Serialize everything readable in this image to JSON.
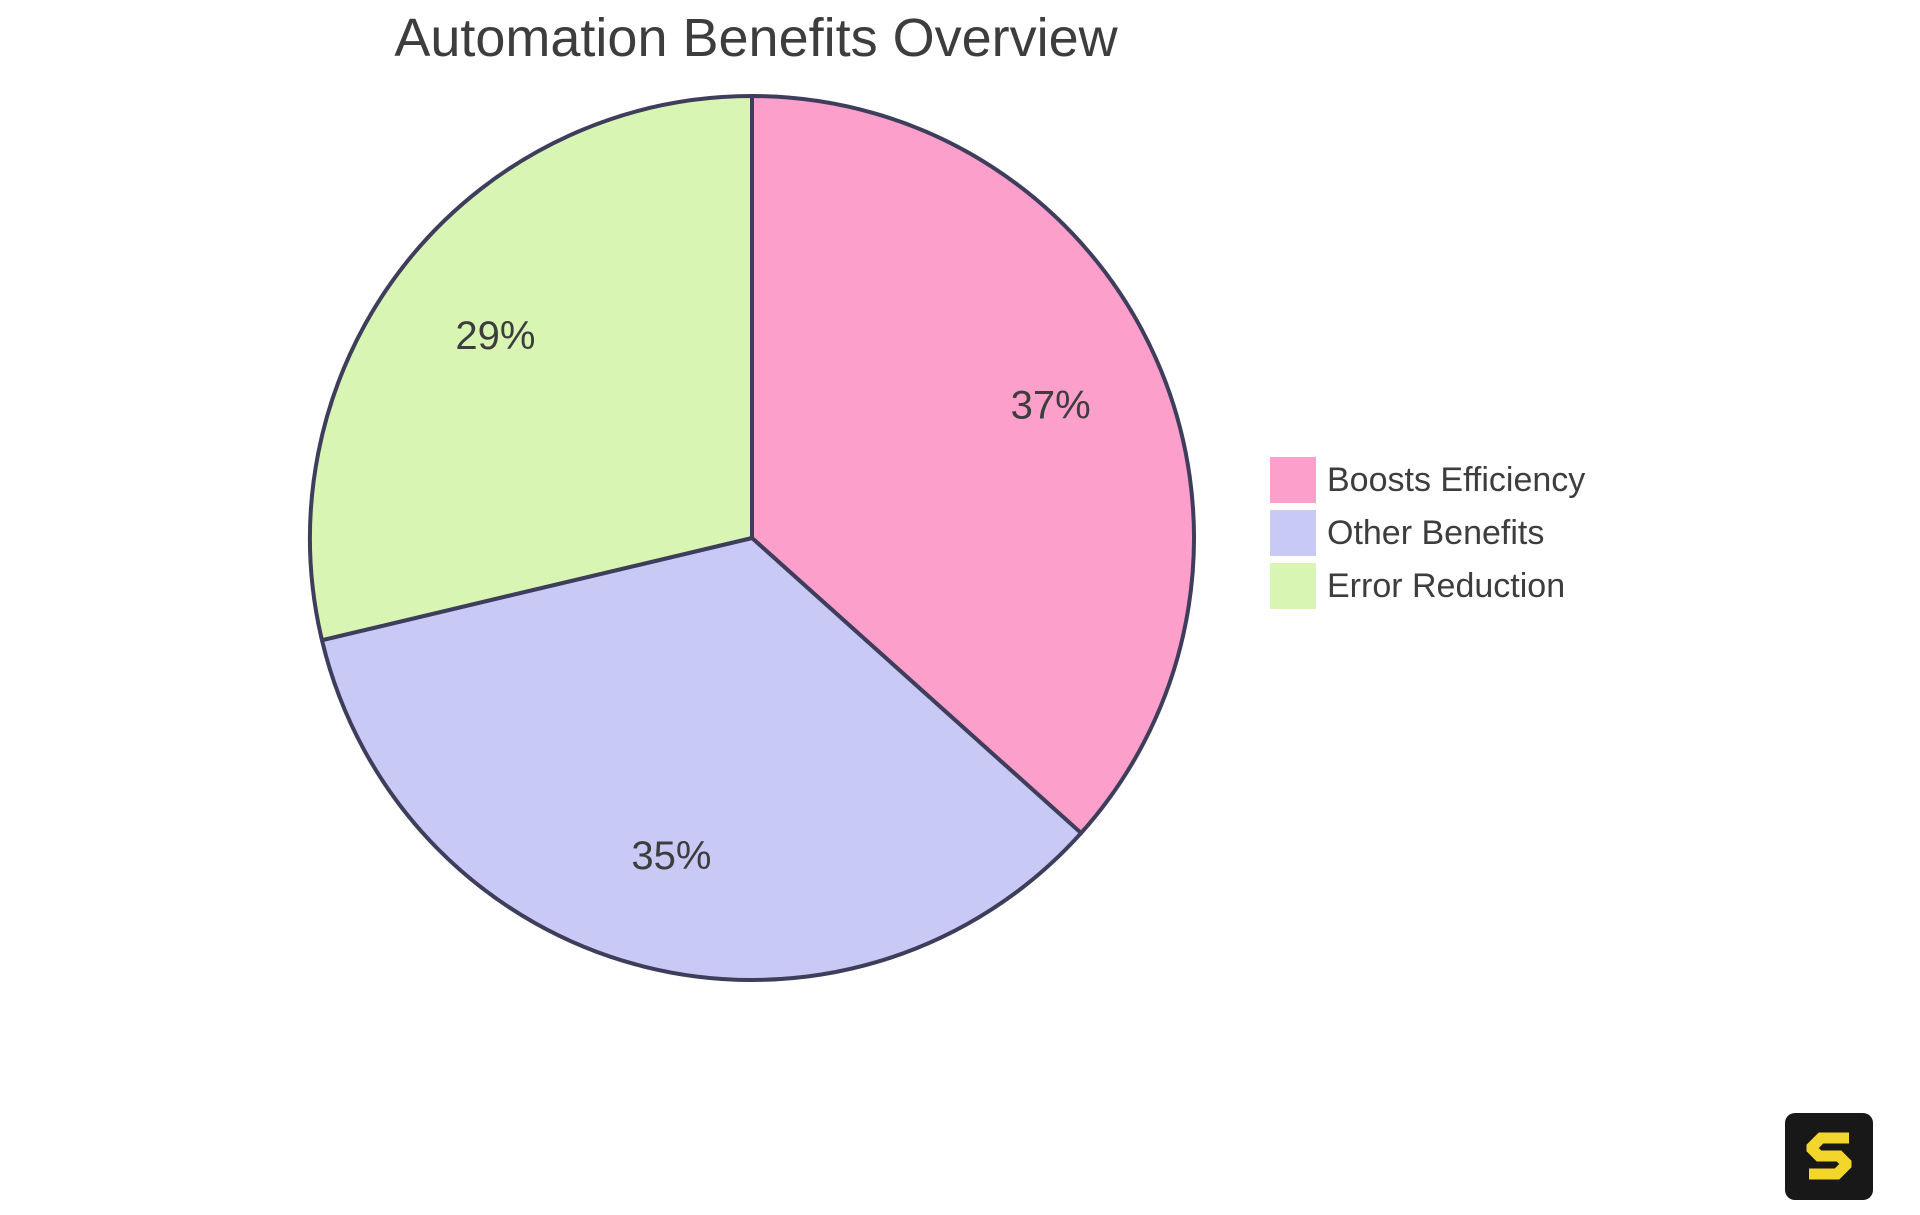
{
  "title": {
    "text": "Automation Benefits Overview",
    "color": "#3d3d3d"
  },
  "chart_data": {
    "type": "pie",
    "title": "Automation Benefits Overview",
    "categories": [
      "Boosts Efficiency",
      "Other Benefits",
      "Error Reduction"
    ],
    "values": [
      37,
      35,
      29
    ],
    "value_labels": [
      "37%",
      "35%",
      "29%"
    ],
    "slice_colors": [
      "#FC9FCA",
      "#C9C9F6",
      "#D8F5B4"
    ],
    "start_angle": "12-oclock",
    "direction": "clockwise",
    "border_color": "#3E3E5C",
    "label_color": "#3D3D3D",
    "label_radius_ratio": 0.74,
    "legend_position": "right-middle",
    "grid": false
  },
  "legend": {
    "items": [
      {
        "label": "Boosts Efficiency",
        "color": "#FC9FCA"
      },
      {
        "label": "Other Benefits",
        "color": "#C9C9F6"
      },
      {
        "label": "Error Reduction",
        "color": "#D8F5B4"
      }
    ]
  },
  "logo": {
    "letter": "S",
    "background": "#181818",
    "glyph_color": "#F2D62C"
  }
}
